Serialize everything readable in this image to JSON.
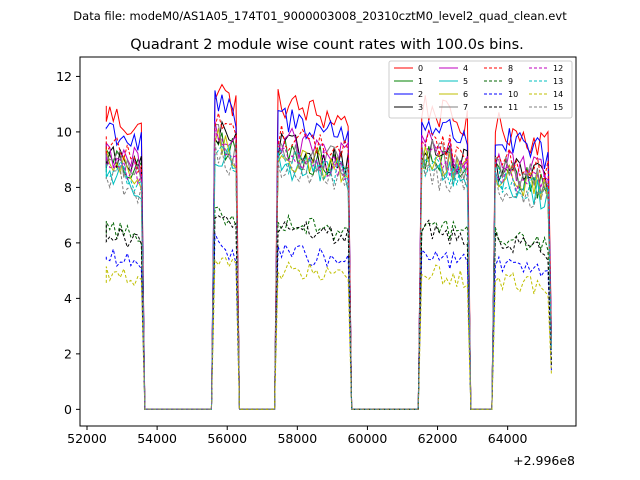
{
  "header": {
    "data_file": "Data file: modeM0/AS1A05_174T01_9000003008_20310cztM0_level2_quad_clean.evt"
  },
  "chart_data": {
    "type": "line",
    "title": "Quadrant 2 module wise count rates with 100.0s bins.",
    "xlabel": "",
    "ylabel": "",
    "x_offset_label": "+2.996e8",
    "x_offset": 299600000,
    "xlim": [
      51800,
      65950
    ],
    "ylim": [
      -0.6,
      12.7
    ],
    "x_ticks": [
      52000,
      54000,
      56000,
      58000,
      60000,
      62000,
      64000
    ],
    "x_tick_labels": [
      "52000",
      "54000",
      "56000",
      "58000",
      "60000",
      "62000",
      "64000"
    ],
    "y_ticks": [
      0,
      2,
      4,
      6,
      8,
      10,
      12
    ],
    "y_tick_labels": [
      "0",
      "2",
      "4",
      "6",
      "8",
      "10",
      "12"
    ],
    "bin_width_s": 100,
    "observation_segments": [
      [
        52550,
        53550
      ],
      [
        55650,
        56250
      ],
      [
        57450,
        59450
      ],
      [
        61550,
        62850
      ],
      [
        63650,
        65250
      ]
    ],
    "legend_position": "top-right",
    "series": [
      {
        "name": "0",
        "color": "#ff0000",
        "dash": "solid",
        "mean": 10.7,
        "amp": 0.8
      },
      {
        "name": "1",
        "color": "#008000",
        "dash": "solid",
        "mean": 9.0,
        "amp": 0.8
      },
      {
        "name": "2",
        "color": "#0000ff",
        "dash": "solid",
        "mean": 10.2,
        "amp": 0.8
      },
      {
        "name": "3",
        "color": "#000000",
        "dash": "solid",
        "mean": 9.2,
        "amp": 0.8
      },
      {
        "name": "4",
        "color": "#bf00bf",
        "dash": "solid",
        "mean": 9.4,
        "amp": 0.8
      },
      {
        "name": "5",
        "color": "#00bfbf",
        "dash": "solid",
        "mean": 8.6,
        "amp": 0.8
      },
      {
        "name": "6",
        "color": "#bfbf00",
        "dash": "solid",
        "mean": 8.9,
        "amp": 0.8
      },
      {
        "name": "7",
        "color": "#808080",
        "dash": "solid",
        "mean": 9.1,
        "amp": 0.8
      },
      {
        "name": "8",
        "color": "#ff0000",
        "dash": "dashed",
        "mean": 9.6,
        "amp": 0.7
      },
      {
        "name": "9",
        "color": "#006400",
        "dash": "dashed",
        "mean": 6.6,
        "amp": 0.5
      },
      {
        "name": "10",
        "color": "#0000ff",
        "dash": "dashed",
        "mean": 5.5,
        "amp": 0.5
      },
      {
        "name": "11",
        "color": "#000000",
        "dash": "dashed",
        "mean": 6.4,
        "amp": 0.5
      },
      {
        "name": "12",
        "color": "#bf00bf",
        "dash": "dashed",
        "mean": 9.0,
        "amp": 0.7
      },
      {
        "name": "13",
        "color": "#00bfbf",
        "dash": "dashed",
        "mean": 8.7,
        "amp": 0.7
      },
      {
        "name": "14",
        "color": "#bfbf00",
        "dash": "dashed",
        "mean": 4.9,
        "amp": 0.5
      },
      {
        "name": "15",
        "color": "#808080",
        "dash": "dashed",
        "mean": 8.4,
        "amp": 0.7
      }
    ]
  }
}
